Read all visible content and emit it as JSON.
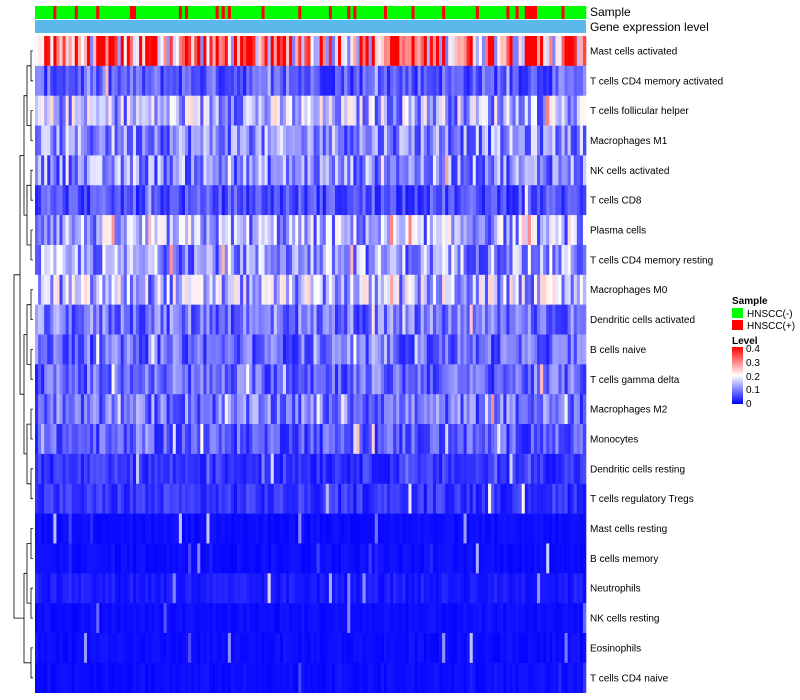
{
  "chart_data": {
    "type": "heatmap",
    "title": "",
    "annotation_tracks": [
      {
        "name": "Sample"
      },
      {
        "name": "Gene expression level"
      }
    ],
    "rows": [
      "Mast cells activated",
      "T cells CD4 memory activated",
      "T cells follicular helper",
      "Macrophages M1",
      "NK cells activated",
      "T cells CD8",
      "Plasma cells",
      "T cells CD4 memory resting",
      "Macrophages M0",
      "Dendritic cells activated",
      "B cells naive",
      "T cells gamma delta",
      "Macrophages M2",
      "Monocytes",
      "Dendritic cells resting",
      "T cells regulatory  Tregs",
      "Mast cells resting",
      "B cells memory",
      "Neutrophils",
      "NK cells resting",
      "Eosinophils",
      "T cells CD4 naive"
    ],
    "row_mean_levels": [
      0.3,
      0.07,
      0.14,
      0.11,
      0.11,
      0.06,
      0.13,
      0.12,
      0.14,
      0.09,
      0.08,
      0.08,
      0.09,
      0.07,
      0.04,
      0.04,
      0.01,
      0.01,
      0.02,
      0.01,
      0.01,
      0.01
    ],
    "n_samples": 180,
    "color_scale": {
      "min": 0,
      "max": 0.4,
      "low": "#0000ff",
      "mid": "#ffffff",
      "high": "#ff0000"
    },
    "legends": {
      "sample": {
        "title": "Sample",
        "entries": [
          {
            "label": "HNSCC(-)",
            "color": "#00ff00"
          },
          {
            "label": "HNSCC(+)",
            "color": "#ff0000"
          }
        ]
      },
      "level": {
        "title": "Level",
        "ticks": [
          "0.4",
          "0.3",
          "0.2",
          "0.1",
          "0"
        ]
      }
    },
    "track_colors": {
      "gene_expression_level": "#5bb8ea"
    }
  }
}
